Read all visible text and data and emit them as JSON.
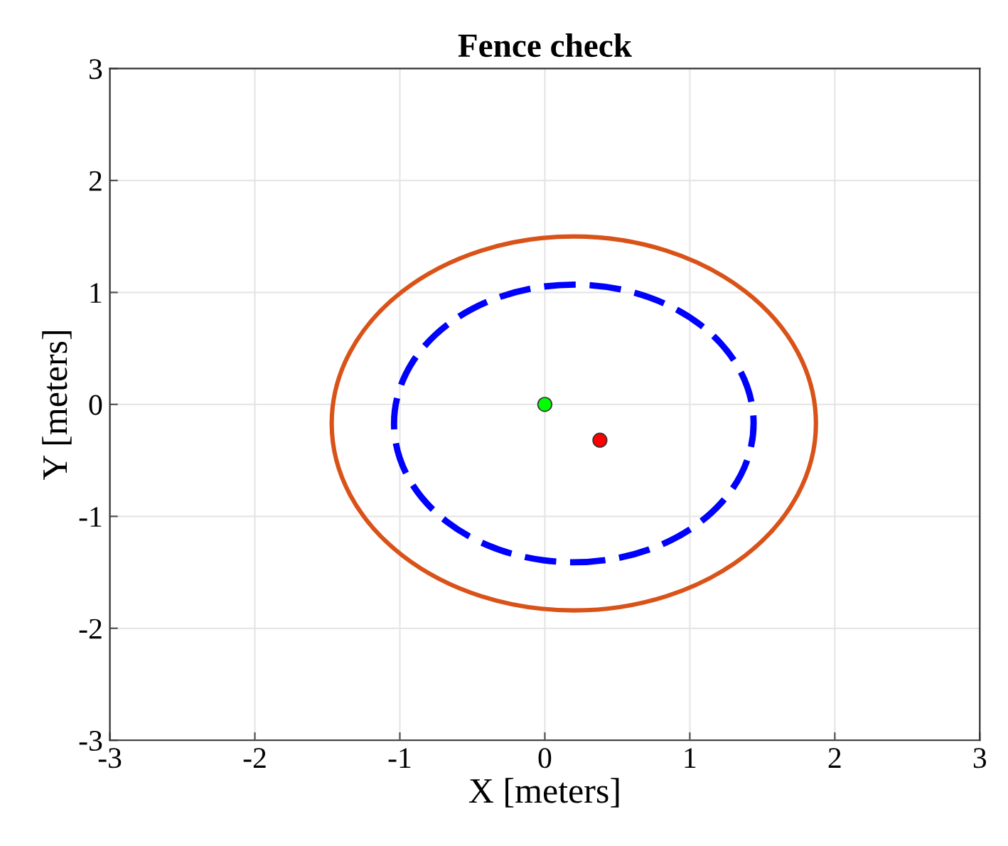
{
  "chart_data": {
    "type": "scatter",
    "title": "Fence check",
    "xlabel": "X [meters]",
    "ylabel": "Y [meters]",
    "xlim": [
      -3,
      3
    ],
    "ylim": [
      -3,
      3
    ],
    "xticks": [
      -3,
      -2,
      -1,
      0,
      1,
      2,
      3
    ],
    "yticks": [
      -3,
      -2,
      -1,
      0,
      1,
      2,
      3
    ],
    "grid": true,
    "series": [
      {
        "color": "#00ff00",
        "marker": "circle",
        "x": [
          0
        ],
        "values": [
          0
        ]
      },
      {
        "color": "#ff0000",
        "marker": "circle",
        "x": [
          0.38
        ],
        "values": [
          -0.32
        ]
      }
    ]
  }
}
